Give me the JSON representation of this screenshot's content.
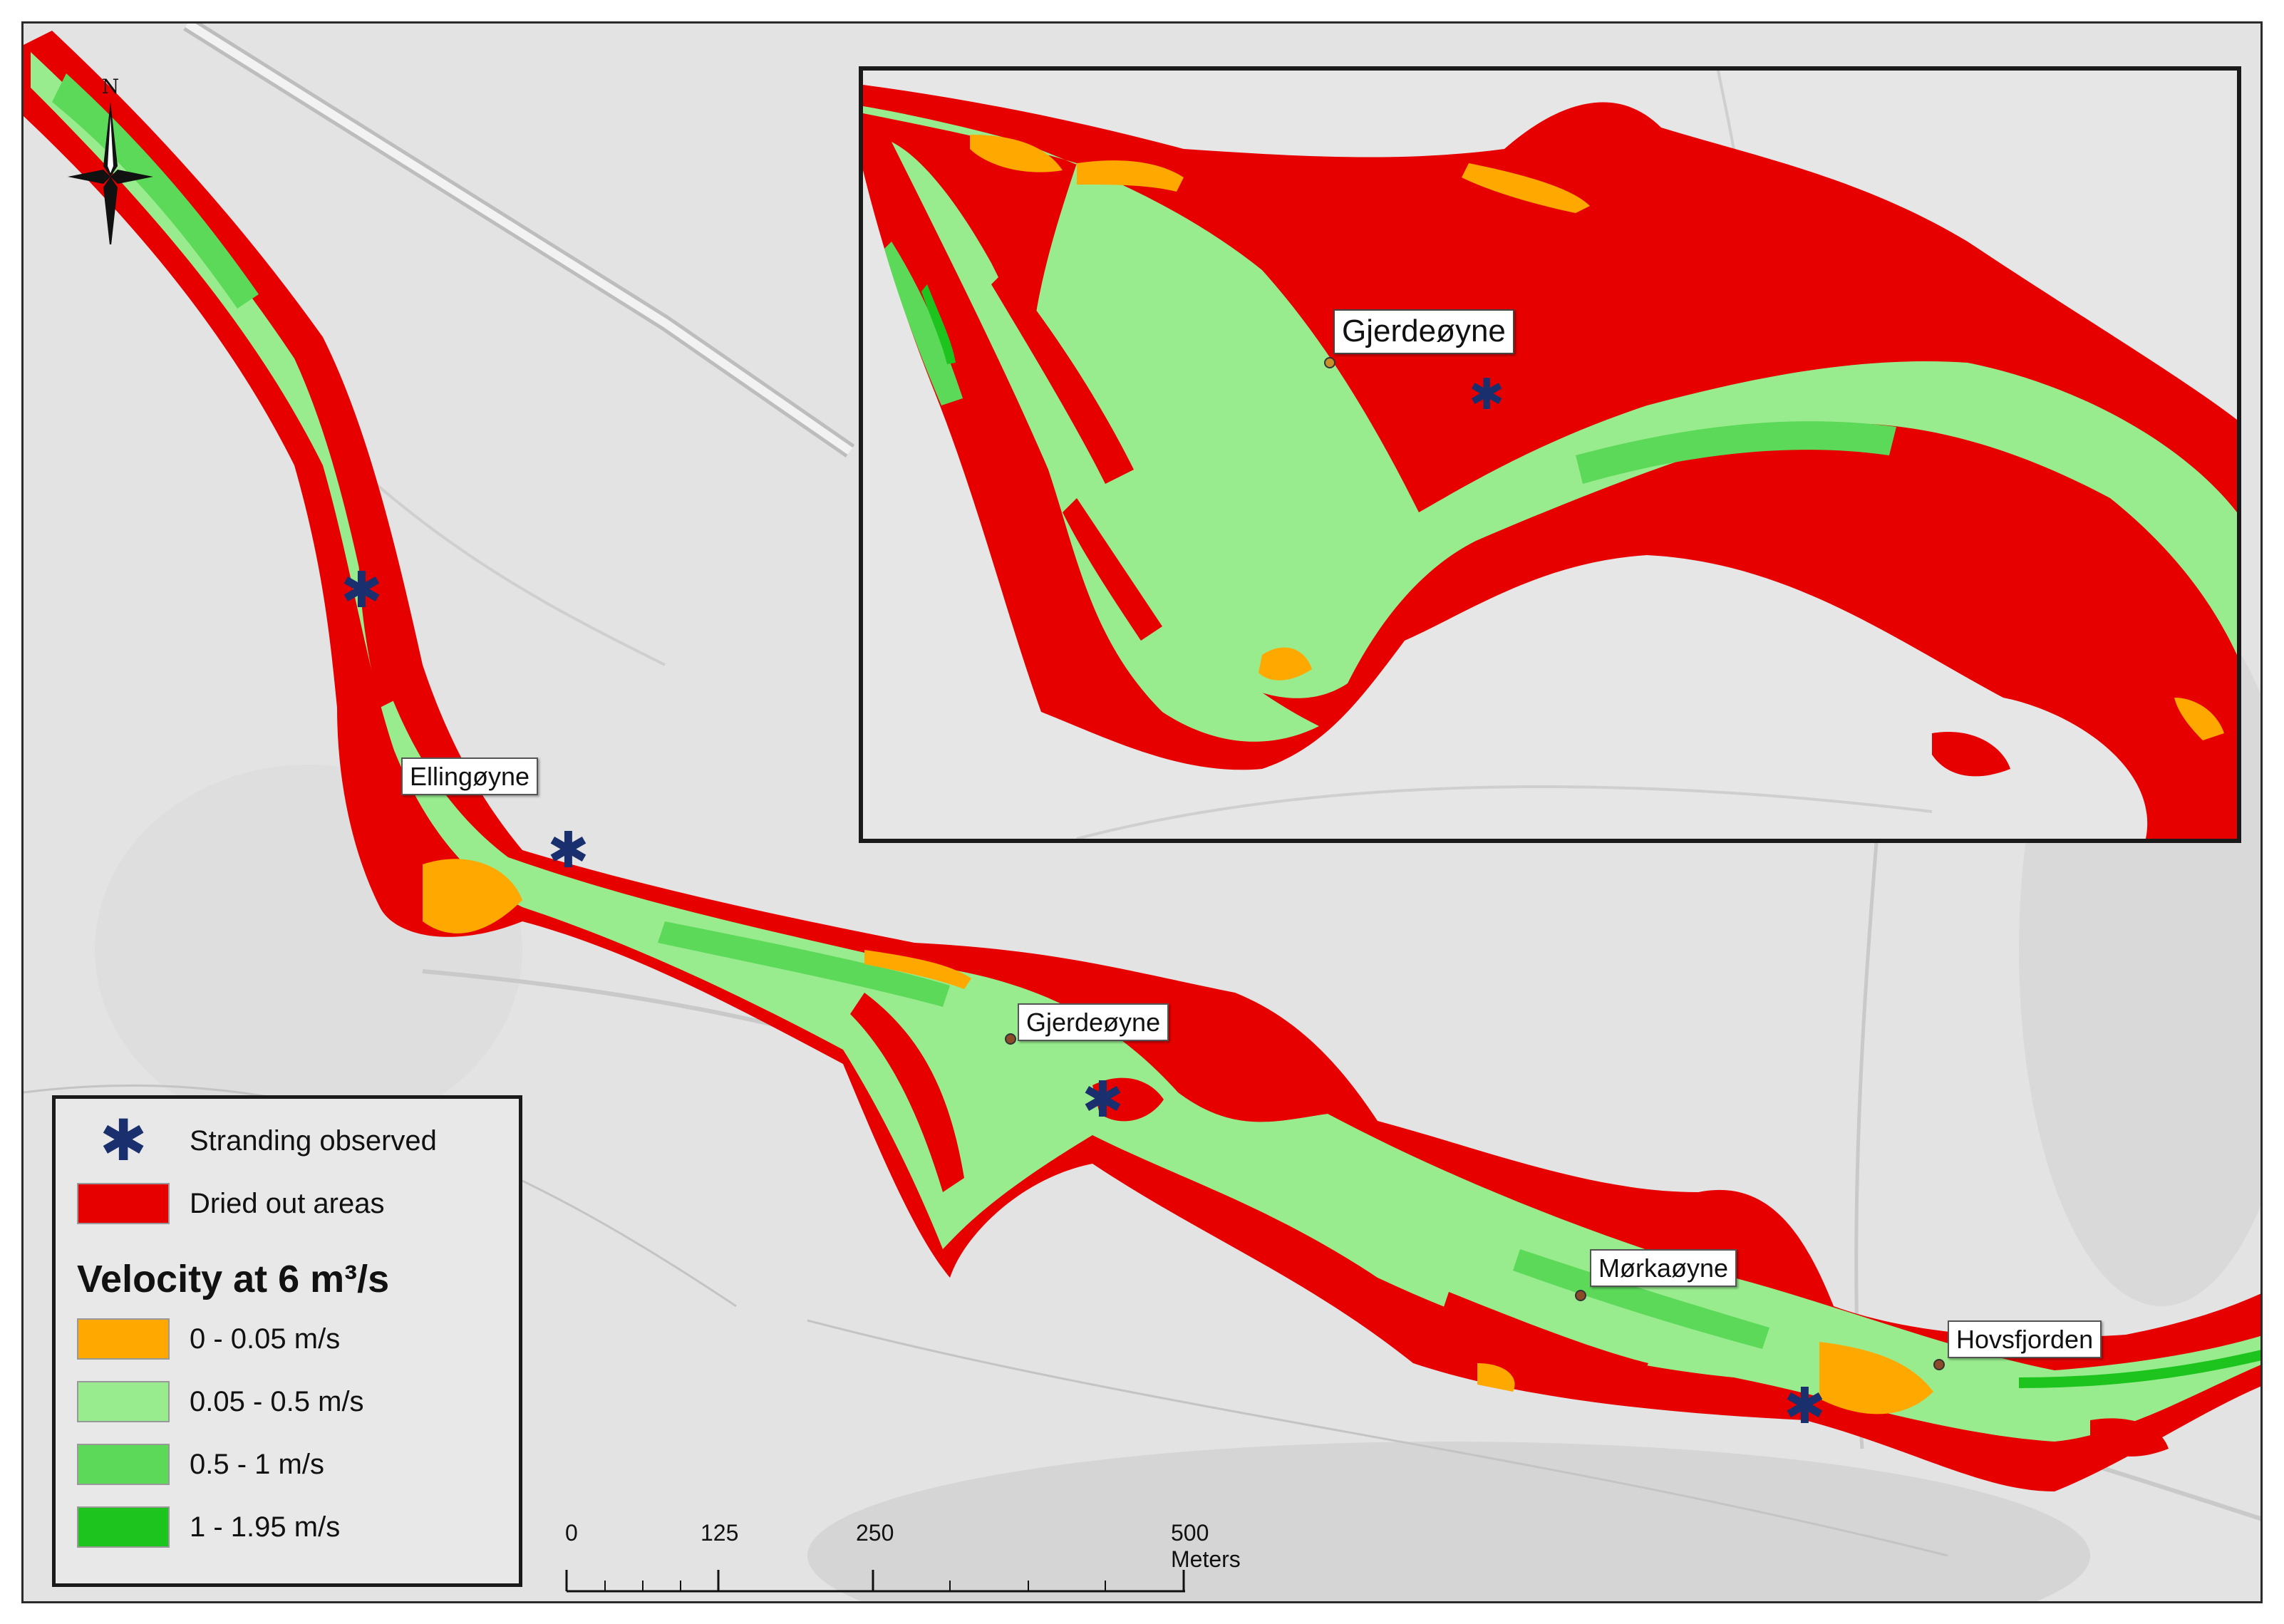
{
  "map": {
    "labels": {
      "ellingoyne": "Ellingøyne",
      "gjerdeoyne": "Gjerdeøyne",
      "morkaoyne": "Mørkaøyne",
      "hovsfjorden": "Hovsfjorden"
    },
    "inset_label": "Gjerdeøyne",
    "north_label": "N"
  },
  "legend": {
    "stranding": "Stranding observed",
    "dried": "Dried out areas",
    "velocity_title": "Velocity at 6 m³/s",
    "classes": [
      {
        "label": "0 - 0.05 m/s",
        "color": "#ffa800"
      },
      {
        "label": "0.05 - 0.5 m/s",
        "color": "#98ec8e"
      },
      {
        "label": "0.5 - 1 m/s",
        "color": "#5dd95a"
      },
      {
        "label": "1 - 1.95 m/s",
        "color": "#1ec41e"
      }
    ],
    "dried_color": "#e60000",
    "stranding_color": "#1a2f6e"
  },
  "scalebar": {
    "ticks": [
      "0",
      "125",
      "250",
      "500 Meters"
    ]
  }
}
